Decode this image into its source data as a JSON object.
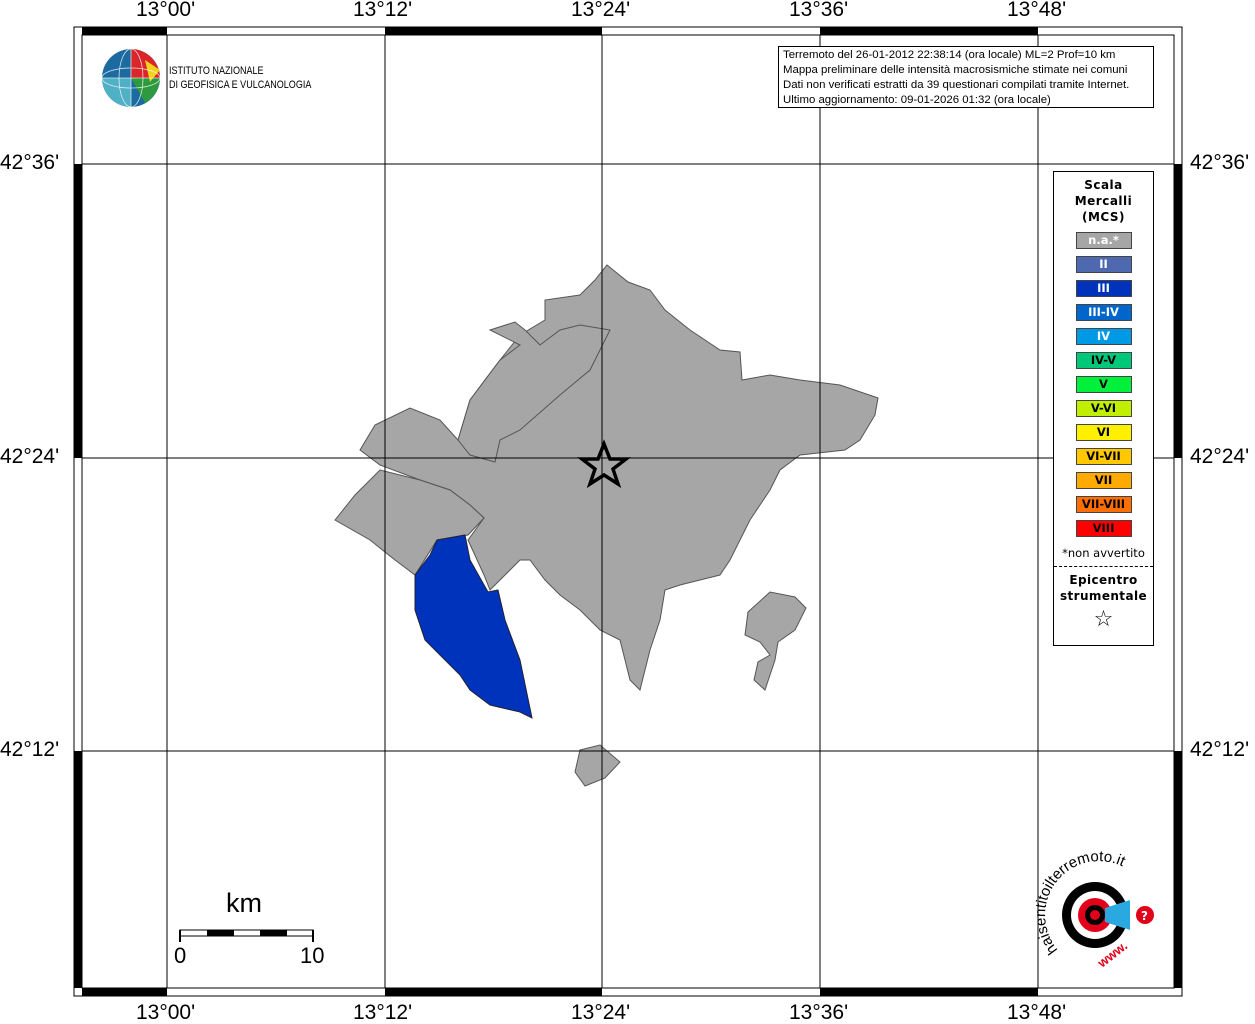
{
  "map": {
    "lon_ticks": [
      "13°00'",
      "13°12'",
      "13°24'",
      "13°36'",
      "13°48'"
    ],
    "lat_ticks": [
      "42°36'",
      "42°24'",
      "42°12'"
    ],
    "epicenter_marker": "star-icon",
    "colors": {
      "not_felt": "#a6a6a6",
      "III": "#0033bb"
    }
  },
  "institute": {
    "line1": "ISTITUTO NAZIONALE",
    "line2": "DI GEOFISICA E VULCANOLOGIA"
  },
  "info": [
    "Terremoto del 26-01-2012 22:38:14 (ora locale) ML=2 Prof=10 km",
    "Mappa preliminare delle intensità macrosismiche stimate nei comuni",
    "Dati non verificati estratti da 39 questionari compilati tramite Internet.",
    "Ultimo aggiornamento: 09-01-2026 01:32 (ora locale)"
  ],
  "legend": {
    "title": [
      "Scala",
      "Mercalli",
      "(MCS)"
    ],
    "items": [
      {
        "label": "n.a.*",
        "color": "#a6a6a6",
        "text": "#fff"
      },
      {
        "label": "II",
        "color": "#4f69b0",
        "text": "#fff"
      },
      {
        "label": "III",
        "color": "#0033bb",
        "text": "#fff"
      },
      {
        "label": "III-IV",
        "color": "#0066cc",
        "text": "#fff"
      },
      {
        "label": "IV",
        "color": "#0099e6",
        "text": "#fff"
      },
      {
        "label": "IV-V",
        "color": "#00c878",
        "text": "#000"
      },
      {
        "label": "V",
        "color": "#00f03c",
        "text": "#000"
      },
      {
        "label": "V-VI",
        "color": "#c0f000",
        "text": "#000"
      },
      {
        "label": "VI",
        "color": "#fff000",
        "text": "#000"
      },
      {
        "label": "VI-VII",
        "color": "#ffc800",
        "text": "#000"
      },
      {
        "label": "VII",
        "color": "#ffaa00",
        "text": "#000"
      },
      {
        "label": "VII-VIII",
        "color": "#ff6e00",
        "text": "#000"
      },
      {
        "label": "VIII",
        "color": "#ff0000",
        "text": "#000"
      }
    ],
    "note": "*non avvertito",
    "epicenter": [
      "Epicentro",
      "strumentale"
    ]
  },
  "scalebar": {
    "unit": "km",
    "start": "0",
    "end": "10"
  },
  "haisentito": {
    "text": "haisentitoilterremoto.it",
    "prefix": "www."
  }
}
